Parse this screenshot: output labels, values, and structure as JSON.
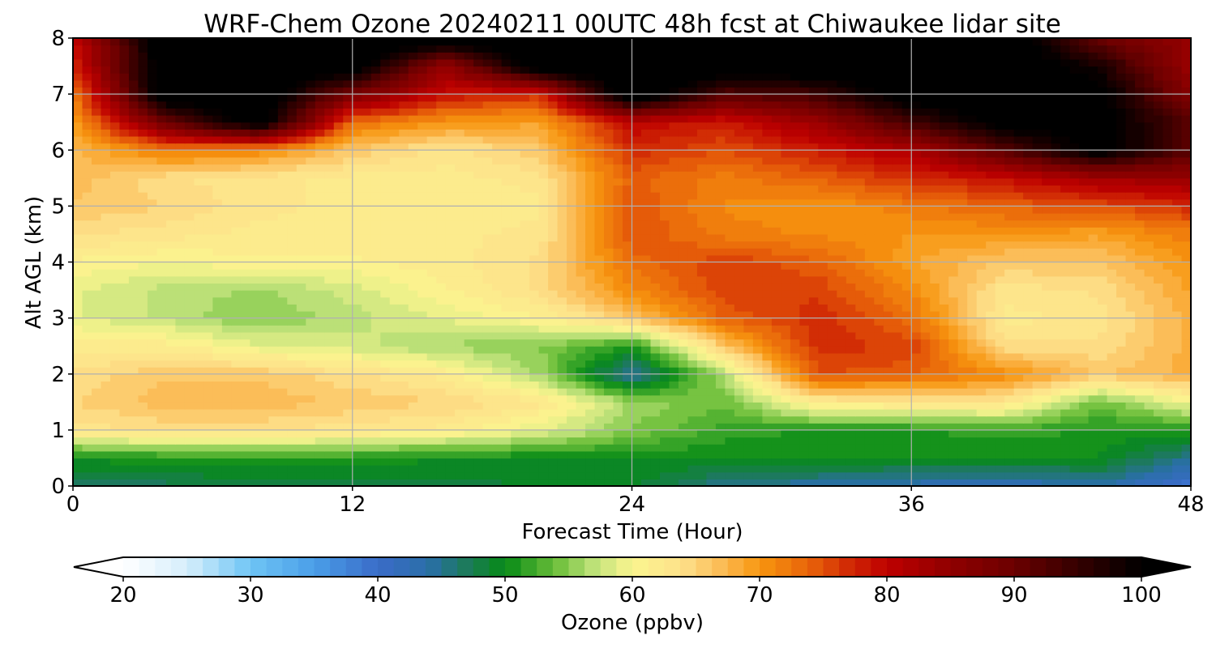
{
  "chart_data": {
    "type": "heatmap",
    "title": "WRF-Chem Ozone  20240211 00UTC 48h fcst at Chiwaukee lidar site",
    "xlabel": "Forecast Time (Hour)",
    "ylabel": "Alt AGL (km)",
    "xlim": [
      0,
      48
    ],
    "ylim": [
      0,
      8
    ],
    "xticks": [
      0,
      12,
      24,
      36,
      48
    ],
    "yticks": [
      0,
      1,
      2,
      3,
      4,
      5,
      6,
      7,
      8
    ],
    "grid": true,
    "colorbar": {
      "label": "Ozone  (ppbv)",
      "min": 20,
      "max": 100,
      "ticks": [
        20,
        30,
        40,
        50,
        60,
        70,
        80,
        90,
        100
      ],
      "extend": "both",
      "orientation": "horizontal",
      "placement": "bottom"
    },
    "x": [
      0,
      4,
      8,
      12,
      16,
      20,
      24,
      28,
      32,
      36,
      40,
      44,
      48
    ],
    "y": [
      0,
      0.5,
      1,
      1.5,
      2,
      2.5,
      3,
      3.5,
      4,
      4.5,
      5,
      5.5,
      6,
      6.5,
      7,
      7.5,
      8
    ],
    "z": [
      [
        47,
        47,
        48,
        48,
        48,
        49,
        49,
        45,
        44,
        43,
        42,
        44,
        39
      ],
      [
        50,
        51,
        51,
        51,
        50,
        50,
        50,
        50,
        50,
        50,
        50,
        50,
        45
      ],
      [
        63,
        64,
        64,
        63,
        62,
        59,
        55,
        52,
        51,
        51,
        52,
        51,
        51
      ],
      [
        65,
        67,
        67,
        66,
        65,
        63,
        56,
        54,
        62,
        63,
        63,
        54,
        60
      ],
      [
        64,
        66,
        66,
        64,
        62,
        56,
        44,
        57,
        75,
        74,
        71,
        66,
        68
      ],
      [
        62,
        62,
        59,
        58,
        56,
        55,
        51,
        66,
        77,
        76,
        64,
        64,
        68
      ],
      [
        59,
        57,
        55,
        57,
        59,
        61,
        66,
        74,
        77,
        73,
        62,
        63,
        68
      ],
      [
        59,
        57,
        56,
        58,
        61,
        64,
        71,
        76,
        76,
        71,
        63,
        64,
        69
      ],
      [
        61,
        60,
        61,
        61,
        62,
        64,
        73,
        76,
        74,
        69,
        66,
        66,
        70
      ],
      [
        64,
        63,
        62,
        62,
        62,
        63,
        75,
        72,
        71,
        70,
        70,
        69,
        72
      ],
      [
        66,
        65,
        63,
        62,
        62,
        62,
        75,
        71,
        70,
        72,
        74,
        75,
        77
      ],
      [
        67,
        64,
        63,
        62,
        62,
        63,
        74,
        72,
        74,
        77,
        79,
        83,
        84
      ],
      [
        67,
        72,
        71,
        66,
        63,
        66,
        77,
        75,
        78,
        82,
        92,
        102,
        92
      ],
      [
        69,
        90,
        103,
        73,
        70,
        69,
        80,
        78,
        84,
        94,
        102,
        102,
        92
      ],
      [
        72,
        104,
        104,
        88,
        79,
        77,
        105,
        92,
        94,
        103,
        103,
        102,
        86
      ],
      [
        77,
        104,
        104,
        103,
        84,
        104,
        105,
        104,
        104,
        104,
        104,
        98,
        84
      ],
      [
        79,
        104,
        104,
        104,
        104,
        104,
        105,
        104,
        104,
        104,
        104,
        90,
        84
      ]
    ]
  }
}
